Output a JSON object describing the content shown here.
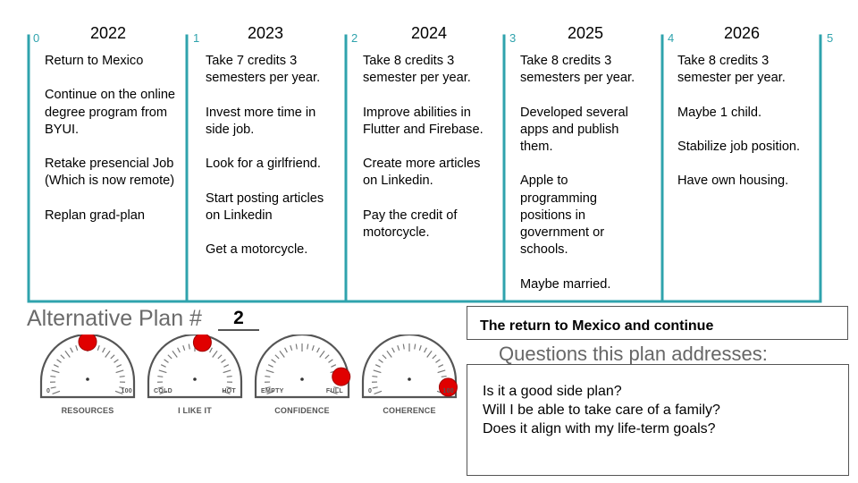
{
  "timeline": {
    "accent_color": "#2fa3ad",
    "ticks": [
      "0",
      "1",
      "2",
      "3",
      "4",
      "5"
    ],
    "columns": [
      {
        "year": "2022",
        "items": [
          "Return to Mexico",
          "Continue on the online degree program from BYUI.",
          "Retake presencial Job (Which is now remote)",
          "Replan grad-plan"
        ]
      },
      {
        "year": "2023",
        "items": [
          "Take 7 credits 3 semesters per year.",
          "Invest more time in side job.",
          "Look for a girlfriend.",
          "Start posting articles on Linkedin",
          "Get a motorcycle."
        ]
      },
      {
        "year": "2024",
        "items": [
          "Take 8 credits 3 semester per year.",
          "Improve abilities in Flutter and Firebase.",
          "Create more articles on Linkedin.",
          "Pay the credit of motorcycle."
        ]
      },
      {
        "year": "2025",
        "items": [
          "Take 8 credits 3 semesters per year.",
          "Developed several apps and publish them.",
          "Apple to programming positions in government or schools.",
          "Maybe married."
        ]
      },
      {
        "year": "2026",
        "items": [
          "Take 8 credits 3 semester per year.",
          "Maybe 1 child.",
          "Stabilize job position.",
          "Have own housing."
        ]
      }
    ]
  },
  "plan": {
    "heading": "Alternative Plan #",
    "number": "2",
    "title": "The return to Mexico and continue",
    "questions_heading": "Questions this plan addresses:",
    "questions": [
      "Is it a good side plan?",
      "Will I be able to take care of a family?",
      "Does it align with my life-term goals?"
    ]
  },
  "gauges": {
    "marker_color": "#e00000",
    "items": [
      {
        "label": "RESOURCES",
        "min": "0",
        "max": "100",
        "level": 0.5
      },
      {
        "label": "I LIKE IT",
        "min": "COLD",
        "max": "HOT",
        "level": 0.55
      },
      {
        "label": "CONFIDENCE",
        "min": "EMPTY",
        "max": "FULL",
        "level": 0.88
      },
      {
        "label": "COHERENCE",
        "min": "0",
        "max": "100",
        "level": 0.95
      }
    ]
  }
}
